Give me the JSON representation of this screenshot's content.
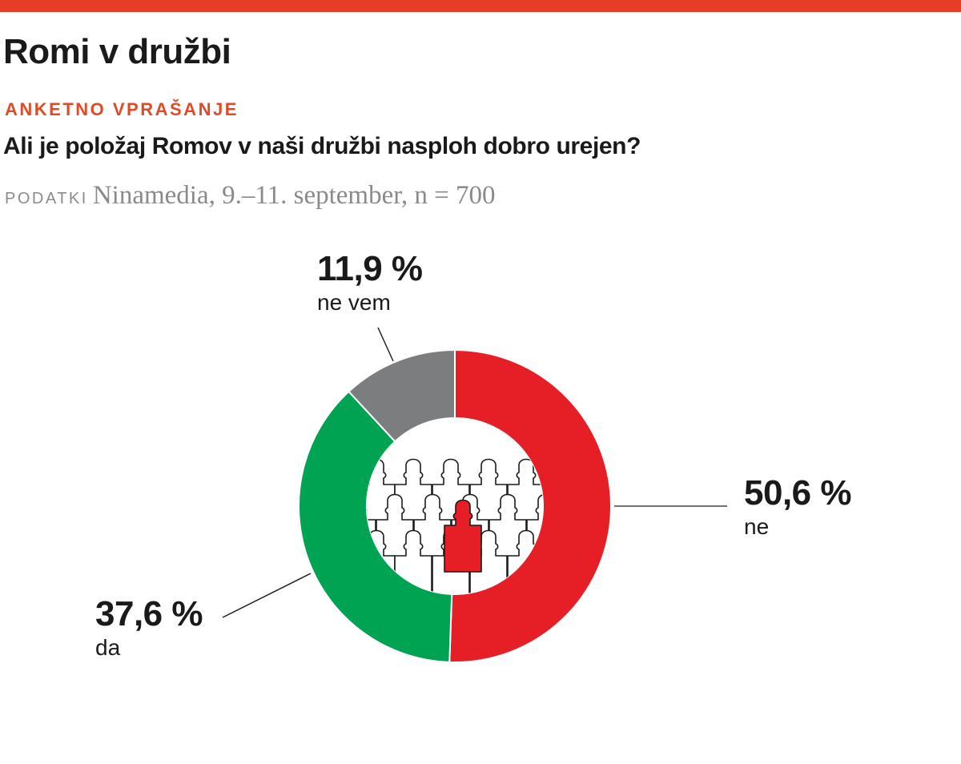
{
  "header": {
    "title": "Romi v družbi",
    "kicker": "ANKETNO VPRAŠANJE",
    "question": "Ali je položaj Romov v naši družbi nasploh dobro urejen?",
    "source_label": "PODATKI",
    "source_text": "Ninamedia, 9.–11. september, n = 700"
  },
  "colors": {
    "top_bar": "#e63e24",
    "kicker": "#e24a26",
    "ne": "#e61e26",
    "da": "#00a352",
    "ne_vem": "#7c7d7e"
  },
  "labels": {
    "ne": {
      "pct": "50,6 %",
      "cat": "ne"
    },
    "da": {
      "pct": "37,6 %",
      "cat": "da"
    },
    "ne_vem": {
      "pct": "11,9 %",
      "cat": "ne vem"
    }
  },
  "center_icon": "crowd-of-people-icon",
  "chart_data": {
    "type": "pie",
    "subtype": "donut",
    "title": "Romi v družbi",
    "subtitle": "Ali je položaj Romov v naši družbi nasploh dobro urejen?",
    "source": "Ninamedia, 9.–11. september, n = 700",
    "categories": [
      "ne",
      "da",
      "ne vem"
    ],
    "values": [
      50.6,
      37.6,
      11.9
    ],
    "unit": "%",
    "colors": [
      "#e61e26",
      "#00a352",
      "#7c7d7e"
    ],
    "start_angle": "12 o'clock",
    "direction": "clockwise",
    "legend": "none (direct labels with leader lines)"
  }
}
